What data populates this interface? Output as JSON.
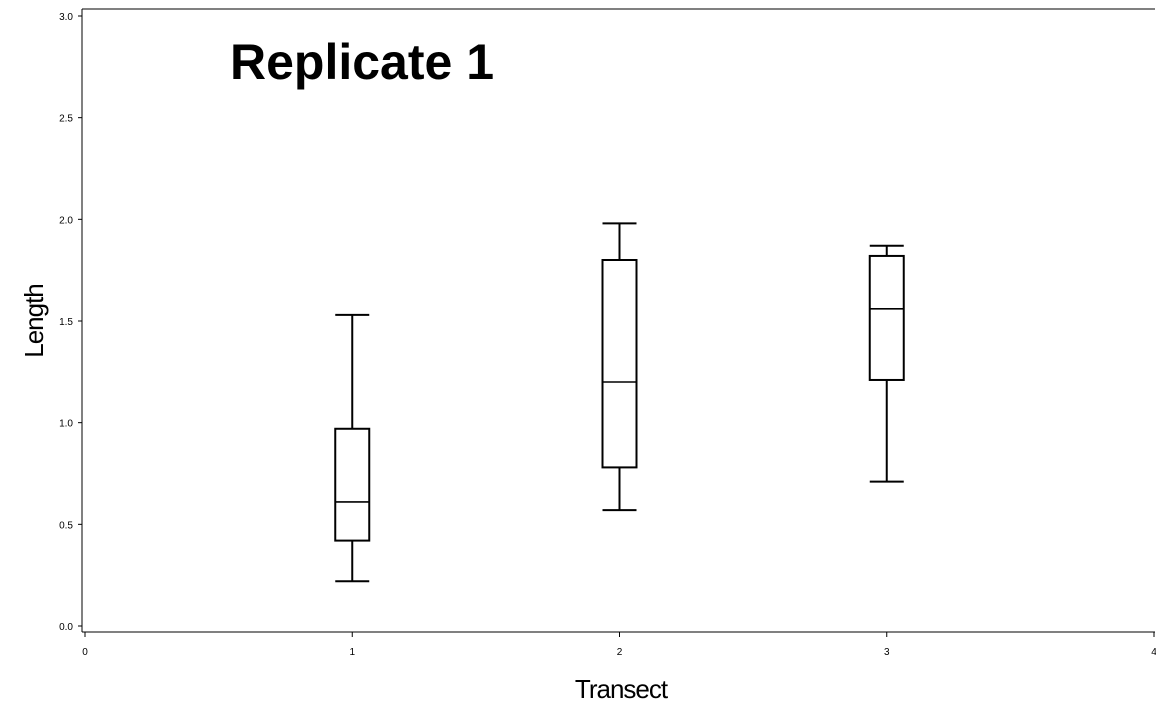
{
  "chart_data": {
    "type": "box",
    "title": "Replicate 1",
    "xlabel": "Transect",
    "ylabel": "Length",
    "xlim": [
      0,
      4
    ],
    "ylim": [
      0,
      3
    ],
    "x_ticks": [
      "0",
      "1",
      "2",
      "3",
      "4"
    ],
    "y_ticks": [
      "0.0",
      "0.5",
      "1.0",
      "1.5",
      "2.0",
      "2.5",
      "3.0"
    ],
    "grid": false,
    "boxes": [
      {
        "x": 1,
        "min": 0.22,
        "q1": 0.42,
        "median": 0.61,
        "q3": 0.97,
        "max": 1.53
      },
      {
        "x": 2,
        "min": 0.57,
        "q1": 0.78,
        "median": 1.2,
        "q3": 1.8,
        "max": 1.98
      },
      {
        "x": 3,
        "min": 0.71,
        "q1": 1.21,
        "median": 1.56,
        "q3": 1.82,
        "max": 1.87
      }
    ]
  }
}
